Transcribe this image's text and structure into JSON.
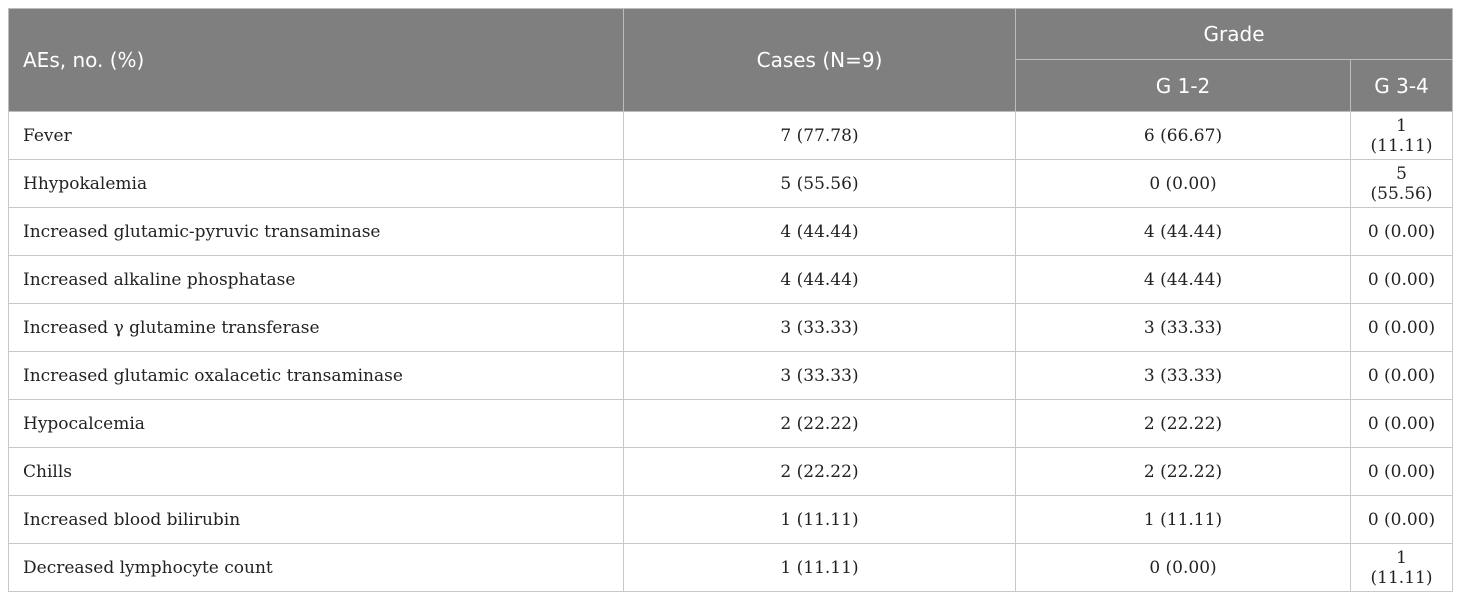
{
  "header": {
    "aes_label": "AEs, no. (%)",
    "cases_label": "Cases (N=9)",
    "grade_label": "Grade",
    "g12_label": "G 1-2",
    "g34_label": "G 3-4"
  },
  "rows": [
    {
      "name": "Fever",
      "cases": "7 (77.78)",
      "g12": "6 (66.67)",
      "g34": "1 (11.11)"
    },
    {
      "name": "Hhypokalemia",
      "cases": "5 (55.56)",
      "g12": "0 (0.00)",
      "g34": "5 (55.56)"
    },
    {
      "name": "Increased glutamic-pyruvic transaminase",
      "cases": "4 (44.44)",
      "g12": "4 (44.44)",
      "g34": "0 (0.00)"
    },
    {
      "name": "Increased alkaline phosphatase",
      "cases": "4 (44.44)",
      "g12": "4 (44.44)",
      "g34": "0 (0.00)"
    },
    {
      "name": "Increased γ glutamine transferase",
      "cases": "3 (33.33)",
      "g12": "3 (33.33)",
      "g34": "0 (0.00)"
    },
    {
      "name": "Increased glutamic oxalacetic transaminase",
      "cases": "3 (33.33)",
      "g12": "3 (33.33)",
      "g34": "0 (0.00)"
    },
    {
      "name": "Hypocalcemia",
      "cases": "2 (22.22)",
      "g12": "2 (22.22)",
      "g34": "0 (0.00)"
    },
    {
      "name": "Chills",
      "cases": "2 (22.22)",
      "g12": "2 (22.22)",
      "g34": "0 (0.00)"
    },
    {
      "name": "Increased blood bilirubin",
      "cases": "1 (11.11)",
      "g12": "1 (11.11)",
      "g34": "0 (0.00)"
    },
    {
      "name": "Decreased lymphocyte count",
      "cases": "1 (11.11)",
      "g12": "0 (0.00)",
      "g34": "1 (11.11)"
    }
  ]
}
